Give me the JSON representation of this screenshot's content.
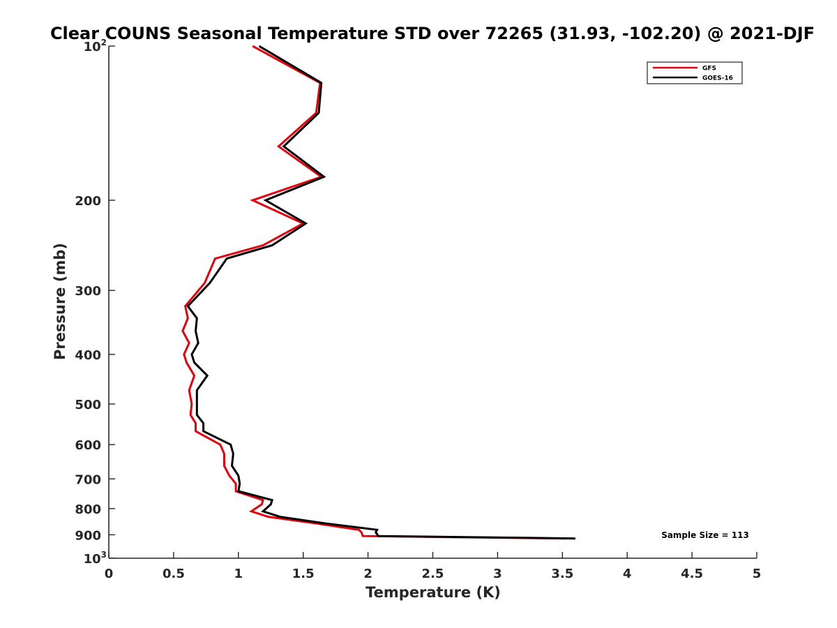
{
  "chart_data": {
    "type": "line",
    "title": "Clear COUNS Seasonal Temperature STD over 72265 (31.93, -102.20) @ 2021-DJF",
    "xlabel": "Temperature (K)",
    "ylabel": "Pressure (mb)",
    "xlim": [
      0,
      5
    ],
    "ylim": [
      1000,
      100
    ],
    "yscale": "log",
    "y_reversed": true,
    "x_ticks": [
      "0",
      "0.5",
      "1",
      "1.5",
      "2",
      "2.5",
      "3",
      "3.5",
      "4",
      "4.5",
      "5"
    ],
    "y_ticks": [
      {
        "value": 100,
        "label": "10",
        "sup": "2"
      },
      {
        "value": 200,
        "label": "200",
        "sup": ""
      },
      {
        "value": 300,
        "label": "300",
        "sup": ""
      },
      {
        "value": 400,
        "label": "400",
        "sup": ""
      },
      {
        "value": 500,
        "label": "500",
        "sup": ""
      },
      {
        "value": 600,
        "label": "600",
        "sup": ""
      },
      {
        "value": 700,
        "label": "700",
        "sup": ""
      },
      {
        "value": 800,
        "label": "800",
        "sup": ""
      },
      {
        "value": 900,
        "label": "900",
        "sup": ""
      },
      {
        "value": 1000,
        "label": "10",
        "sup": "3"
      }
    ],
    "grid": false,
    "legend_position": "top-right",
    "annotation": "Sample Size = 113",
    "series": [
      {
        "name": "GFS",
        "color": "#e8000b",
        "points": [
          [
            1.11,
            100
          ],
          [
            1.63,
            118
          ],
          [
            1.6,
            135
          ],
          [
            1.31,
            157
          ],
          [
            1.64,
            180
          ],
          [
            1.11,
            200
          ],
          [
            1.5,
            222
          ],
          [
            1.19,
            245
          ],
          [
            0.82,
            260
          ],
          [
            0.74,
            290
          ],
          [
            0.59,
            322
          ],
          [
            0.61,
            340
          ],
          [
            0.57,
            360
          ],
          [
            0.62,
            380
          ],
          [
            0.58,
            400
          ],
          [
            0.6,
            415
          ],
          [
            0.66,
            440
          ],
          [
            0.62,
            470
          ],
          [
            0.64,
            500
          ],
          [
            0.63,
            525
          ],
          [
            0.67,
            545
          ],
          [
            0.67,
            565
          ],
          [
            0.86,
            600
          ],
          [
            0.89,
            625
          ],
          [
            0.89,
            660
          ],
          [
            0.93,
            690
          ],
          [
            0.98,
            715
          ],
          [
            0.98,
            740
          ],
          [
            1.19,
            770
          ],
          [
            1.18,
            785
          ],
          [
            1.1,
            810
          ],
          [
            1.23,
            830
          ],
          [
            1.6,
            855
          ],
          [
            1.93,
            880
          ],
          [
            1.95,
            890
          ],
          [
            1.96,
            905
          ],
          [
            3.53,
            915
          ]
        ]
      },
      {
        "name": "GOES-16",
        "color": "#000000",
        "points": [
          [
            1.16,
            100
          ],
          [
            1.64,
            118
          ],
          [
            1.62,
            135
          ],
          [
            1.35,
            157
          ],
          [
            1.66,
            180
          ],
          [
            1.21,
            200
          ],
          [
            1.52,
            222
          ],
          [
            1.26,
            245
          ],
          [
            0.91,
            260
          ],
          [
            0.78,
            290
          ],
          [
            0.61,
            322
          ],
          [
            0.68,
            340
          ],
          [
            0.67,
            360
          ],
          [
            0.69,
            380
          ],
          [
            0.64,
            400
          ],
          [
            0.66,
            415
          ],
          [
            0.76,
            440
          ],
          [
            0.68,
            470
          ],
          [
            0.68,
            500
          ],
          [
            0.68,
            525
          ],
          [
            0.73,
            545
          ],
          [
            0.73,
            565
          ],
          [
            0.94,
            600
          ],
          [
            0.96,
            625
          ],
          [
            0.95,
            660
          ],
          [
            1.0,
            690
          ],
          [
            1.01,
            715
          ],
          [
            1.0,
            740
          ],
          [
            1.26,
            770
          ],
          [
            1.25,
            785
          ],
          [
            1.19,
            810
          ],
          [
            1.32,
            830
          ],
          [
            1.67,
            855
          ],
          [
            2.07,
            880
          ],
          [
            2.06,
            890
          ],
          [
            2.08,
            905
          ],
          [
            3.6,
            915
          ]
        ]
      }
    ]
  }
}
